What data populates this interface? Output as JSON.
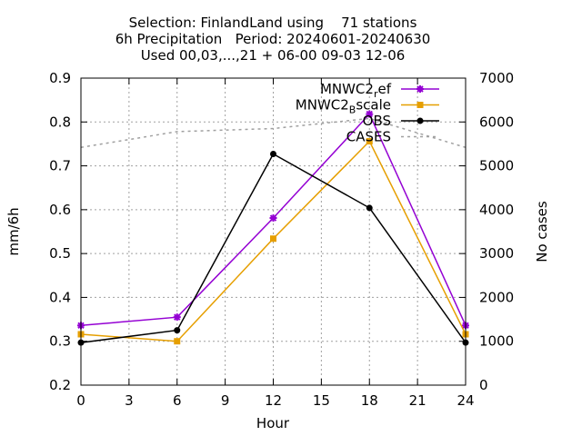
{
  "chart_data": {
    "type": "line",
    "title_lines": [
      "Selection: FinlandLand using    71 stations",
      "6h Precipitation   Period: 20240601-20240630",
      "Used 00,03,...,21 + 06-00 09-03 12-06"
    ],
    "xlabel": "Hour",
    "ylabel": "mm/6h",
    "y2label": "No cases",
    "xlim": [
      0,
      24
    ],
    "ylim": [
      0.2,
      0.9
    ],
    "y2lim": [
      0,
      7000
    ],
    "xticks": [
      "0",
      "3",
      "6",
      "9",
      "12",
      "15",
      "18",
      "21",
      "24"
    ],
    "yticks": [
      "0.2",
      "0.3",
      "0.4",
      "0.5",
      "0.6",
      "0.7",
      "0.8",
      "0.9"
    ],
    "y2ticks": [
      "0",
      "1000",
      "2000",
      "3000",
      "4000",
      "5000",
      "6000",
      "7000"
    ],
    "grid": true,
    "legend_position": "top-right",
    "x": [
      0,
      6,
      12,
      18,
      24
    ],
    "series": [
      {
        "name": "MNWC2_ref",
        "legend_main": "MNWC2",
        "legend_sub": "r",
        "legend_rest": "ef",
        "axis": "y",
        "color": "#9400d3",
        "marker": "star",
        "values": [
          0.336,
          0.355,
          0.581,
          0.818,
          0.336
        ]
      },
      {
        "name": "MNWC2_Bscale",
        "legend_main": "MNWC2",
        "legend_sub": "B",
        "legend_rest": "scale",
        "axis": "y",
        "color": "#e69f00",
        "marker": "square",
        "values": [
          0.316,
          0.3,
          0.534,
          0.756,
          0.316
        ]
      },
      {
        "name": "OBS",
        "legend_main": "OBS",
        "legend_sub": "",
        "legend_rest": "",
        "axis": "y",
        "color": "#000000",
        "marker": "circle",
        "values": [
          0.297,
          0.325,
          0.727,
          0.604,
          0.297
        ]
      },
      {
        "name": "CASES",
        "legend_main": "CASES",
        "legend_sub": "",
        "legend_rest": "",
        "axis": "y2",
        "color": "#a0a0a0",
        "dashed": true,
        "values": [
          5420,
          5780,
          5850,
          6080,
          5420
        ]
      }
    ]
  }
}
